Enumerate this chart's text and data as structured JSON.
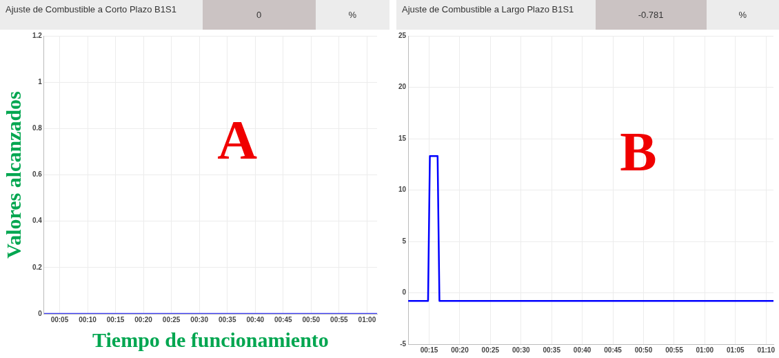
{
  "chart_data": [
    {
      "type": "line",
      "title": "Ajuste de Combustible a Corto Plazo B1S1",
      "ylabel": "Valores alcanzados",
      "xlabel": "Tiempo de funcionamiento",
      "annotations": [
        "0",
        "%",
        "A"
      ],
      "series": [
        {
          "color": "#3d3df5",
          "x": [
            0.037,
            1.03
          ],
          "values": [
            0,
            0
          ]
        }
      ],
      "xlim": [
        0.037,
        1.03
      ],
      "xticks": [
        {
          "value": 0.0833,
          "label": "00:05"
        },
        {
          "value": 0.1667,
          "label": "00:10"
        },
        {
          "value": 0.25,
          "label": "00:15"
        },
        {
          "value": 0.3333,
          "label": "00:20"
        },
        {
          "value": 0.4167,
          "label": "00:25"
        },
        {
          "value": 0.5,
          "label": "00:30"
        },
        {
          "value": 0.5833,
          "label": "00:35"
        },
        {
          "value": 0.6667,
          "label": "00:40"
        },
        {
          "value": 0.75,
          "label": "00:45"
        },
        {
          "value": 0.8333,
          "label": "00:50"
        },
        {
          "value": 0.9167,
          "label": "00:55"
        },
        {
          "value": 1,
          "label": "01:00"
        }
      ],
      "ylim": [
        0,
        1.2
      ],
      "yticks": [
        0,
        0.2,
        0.4,
        0.6,
        0.8,
        1,
        1.2
      ],
      "grid": true,
      "legend": false,
      "marker": "none",
      "line_style": "solid"
    },
    {
      "type": "line",
      "title": "Ajuste de Combustible a Largo Plazo B1S1",
      "annotations": [
        "-0.781",
        "%",
        "B"
      ],
      "series": [
        {
          "color": "#0000ff",
          "x": [
            0.193,
            0.247,
            0.252,
            0.273,
            0.278,
            1.187
          ],
          "values": [
            -0.781,
            -0.781,
            13.3,
            13.3,
            -0.781,
            -0.781
          ]
        }
      ],
      "xlim": [
        0.193,
        1.187
      ],
      "xticks": [
        {
          "value": 0.25,
          "label": "00:15"
        },
        {
          "value": 0.3333,
          "label": "00:20"
        },
        {
          "value": 0.4167,
          "label": "00:25"
        },
        {
          "value": 0.5,
          "label": "00:30"
        },
        {
          "value": 0.5833,
          "label": "00:35"
        },
        {
          "value": 0.6667,
          "label": "00:40"
        },
        {
          "value": 0.75,
          "label": "00:45"
        },
        {
          "value": 0.8333,
          "label": "00:50"
        },
        {
          "value": 0.9167,
          "label": "00:55"
        },
        {
          "value": 1,
          "label": "01:00"
        },
        {
          "value": 1.0833,
          "label": "01:05"
        },
        {
          "value": 1.1667,
          "label": "01:10"
        }
      ],
      "ylim": [
        -5,
        25
      ],
      "yticks": [
        -5,
        0,
        5,
        10,
        15,
        20,
        25
      ],
      "grid": true,
      "legend": false,
      "marker": "none",
      "line_style": "solid"
    }
  ]
}
